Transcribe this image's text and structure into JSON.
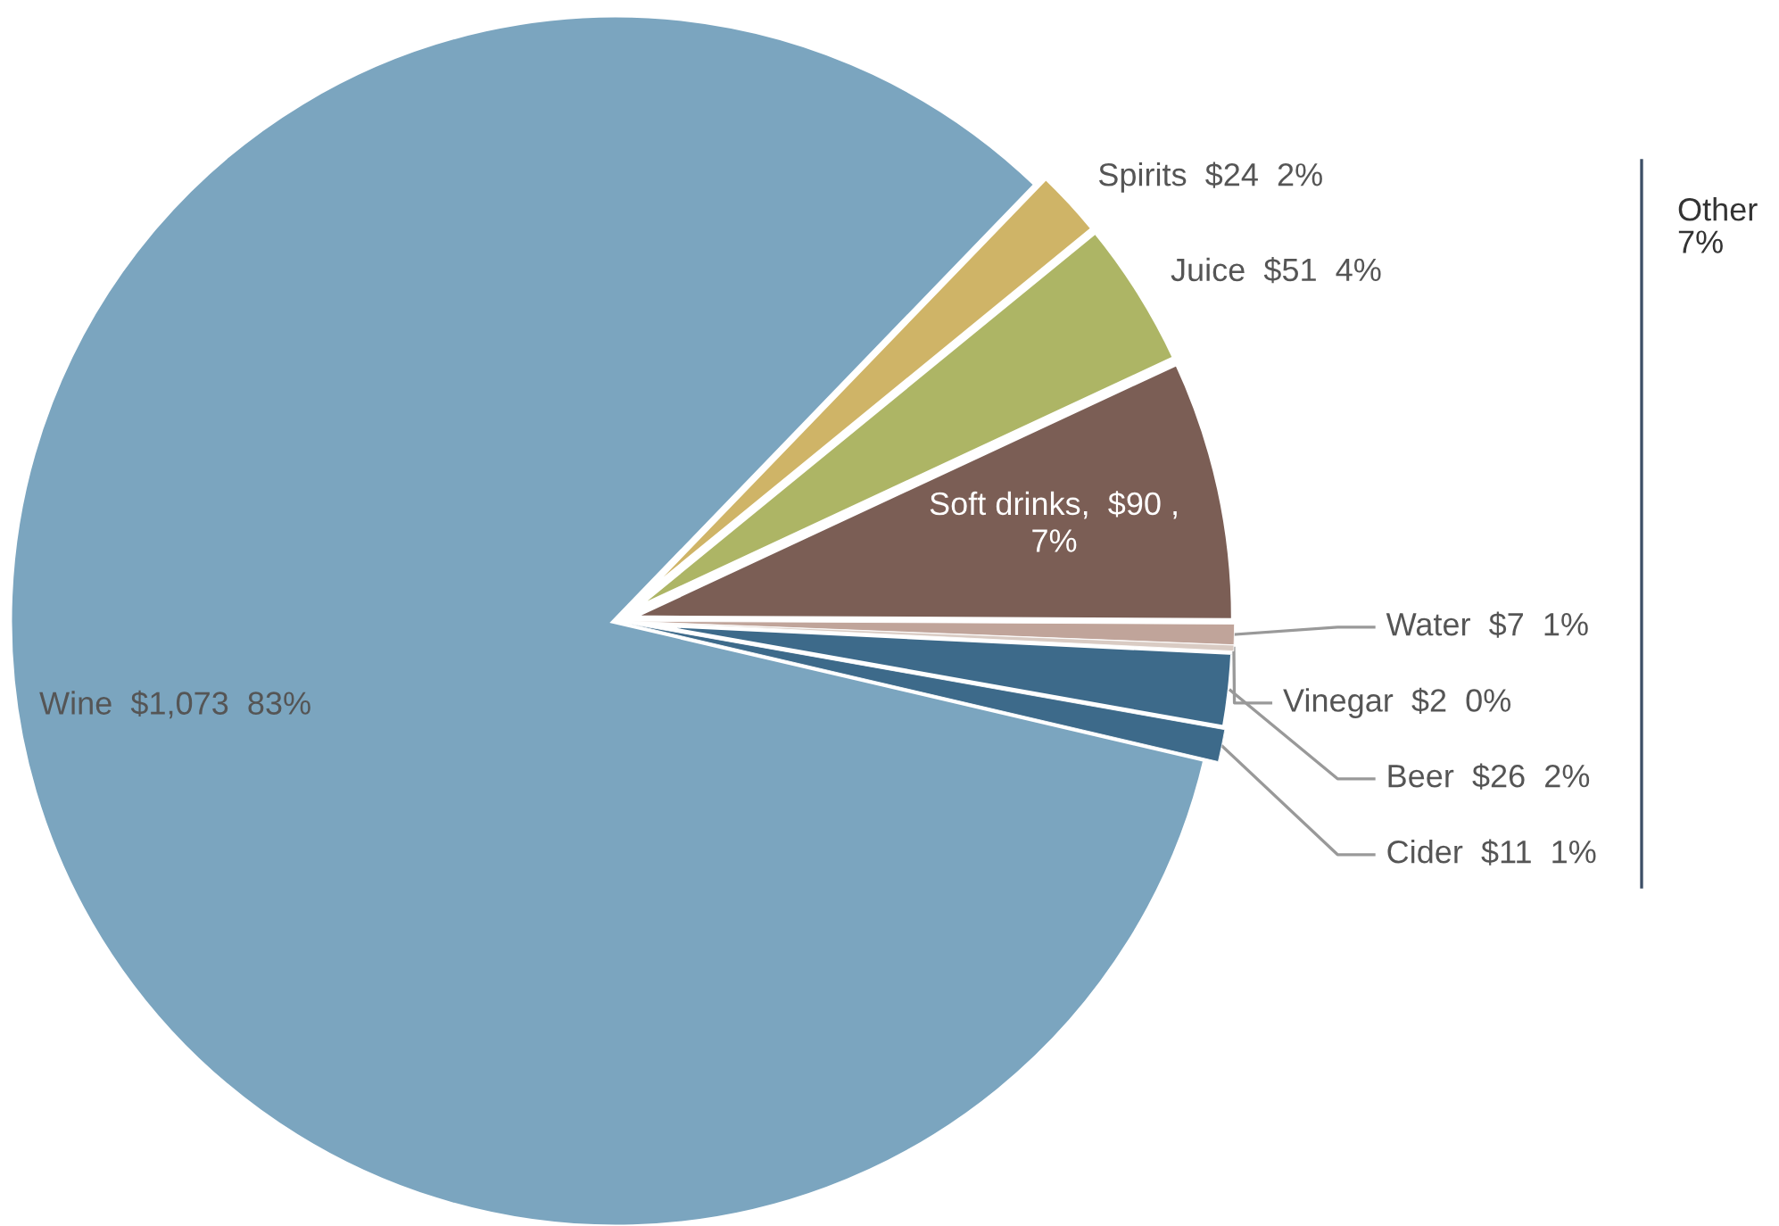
{
  "chart_data": {
    "type": "pie",
    "categories": [
      "Spirits",
      "Juice",
      "Soft drinks",
      "Water",
      "Vinegar",
      "Beer",
      "Cider",
      "Wine"
    ],
    "values": [
      24,
      51,
      90,
      7,
      2,
      26,
      11,
      1073
    ],
    "colors": [
      "#cfb467",
      "#adb565",
      "#7b5e55",
      "#c0a49a",
      "#d9cbc3",
      "#3d6a8a",
      "#3d6a8a",
      "#7ba5bf"
    ],
    "value_labels": [
      "  $24  2%",
      "  $51  4%",
      ",  $90 ,\n7%",
      "  $7  1%",
      "  $2  0%",
      "  $26  2%",
      "  $11  1%",
      "  $1,073  83%"
    ],
    "annotations": [
      "Other\n7%"
    ],
    "legend": false
  }
}
